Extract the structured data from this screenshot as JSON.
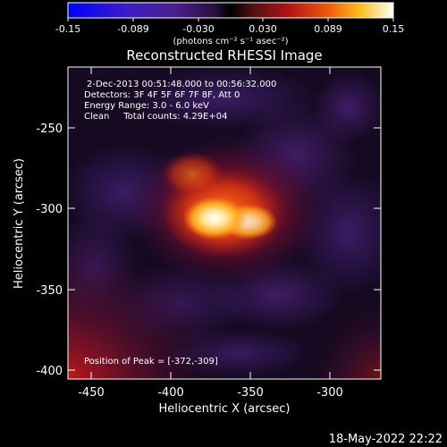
{
  "colorbar": {
    "tick_labels": [
      "-0.15",
      "-0.089",
      "-0.030",
      "0.030",
      "0.089",
      "0.15"
    ],
    "unit_label": "(photons cm⁻² s⁻¹ asec⁻²)"
  },
  "plot": {
    "title": "Reconstructed RHESSI Image",
    "xlabel": "Heliocentric X (arcsec)",
    "ylabel": "Heliocentric Y (arcsec)",
    "xticks": [
      "-450",
      "-400",
      "-350",
      "-300"
    ],
    "yticks": [
      "-250",
      "-300",
      "-350",
      "-400"
    ],
    "annotations": [
      "2-Dec-2013 00:51:48.000 to 00:56:32.000",
      "Detectors: 3F 4F 5F 6F 7F 8F, Att 0",
      "Energy Range: 3.0 - 6.0 keV",
      "Clean     Total counts: 4.29E+04"
    ],
    "peak_label": "Position of Peak = [-372,-309]"
  },
  "footer": {
    "timestamp": "18-May-2022 22:22"
  },
  "chart_data": {
    "type": "heatmap",
    "title": "Reconstructed RHESSI Image",
    "xlabel": "Heliocentric X (arcsec)",
    "ylabel": "Heliocentric Y (arcsec)",
    "xlim": [
      -465,
      -270
    ],
    "ylim": [
      -405,
      -217
    ],
    "colorbar_range": [
      -0.15,
      0.15
    ],
    "colormap": "blue-purple-red-yellow-white",
    "peak": {
      "x": -372,
      "y": -309
    }
  }
}
